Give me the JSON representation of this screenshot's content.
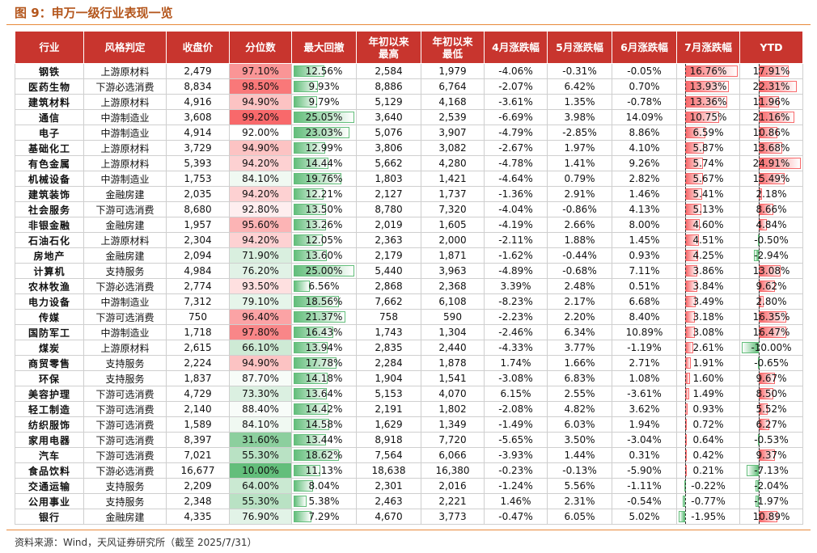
{
  "header": {
    "title": "图 9：申万一级行业表现一览"
  },
  "table": {
    "columns": [
      "行业",
      "风格判定",
      "收盘价",
      "分位数",
      "最大回撤",
      [
        "年初以来",
        "最高"
      ],
      [
        "年初以来",
        "最低"
      ],
      "4月涨跌幅",
      "5月涨跌幅",
      "6月涨跌幅",
      "7月涨跌幅",
      "YTD"
    ],
    "rows": [
      [
        "钢铁",
        "上游原材料",
        "2,479",
        "97.10%",
        "12.56%",
        "2,584",
        "1,979",
        "-4.06%",
        "-0.31%",
        "-0.05%",
        "16.76%",
        "17.91%"
      ],
      [
        "医药生物",
        "下游必选消费",
        "8,834",
        "98.50%",
        "9.93%",
        "8,886",
        "6,764",
        "-2.07%",
        "6.42%",
        "0.70%",
        "13.93%",
        "22.31%"
      ],
      [
        "建筑材料",
        "上游原材料",
        "4,916",
        "94.90%",
        "9.79%",
        "5,129",
        "4,168",
        "-3.61%",
        "1.35%",
        "-0.78%",
        "13.36%",
        "11.96%"
      ],
      [
        "通信",
        "中游制造业",
        "3,608",
        "99.20%",
        "25.05%",
        "3,640",
        "2,539",
        "-6.69%",
        "3.98%",
        "14.09%",
        "10.75%",
        "21.16%"
      ],
      [
        "电子",
        "中游制造业",
        "4,914",
        "92.00%",
        "23.03%",
        "5,076",
        "3,907",
        "-4.79%",
        "-2.85%",
        "8.86%",
        "6.59%",
        "10.86%"
      ],
      [
        "基础化工",
        "上游原材料",
        "3,729",
        "94.90%",
        "12.99%",
        "3,806",
        "3,082",
        "-2.67%",
        "1.97%",
        "4.10%",
        "5.87%",
        "13.68%"
      ],
      [
        "有色金属",
        "上游原材料",
        "5,393",
        "94.20%",
        "14.44%",
        "5,662",
        "4,280",
        "-4.78%",
        "1.41%",
        "9.26%",
        "5.74%",
        "24.91%"
      ],
      [
        "机械设备",
        "中游制造业",
        "1,753",
        "84.10%",
        "19.76%",
        "1,803",
        "1,421",
        "-4.64%",
        "0.79%",
        "2.82%",
        "5.67%",
        "15.49%"
      ],
      [
        "建筑装饰",
        "金融房建",
        "2,035",
        "94.20%",
        "12.21%",
        "2,127",
        "1,737",
        "-1.36%",
        "2.91%",
        "1.46%",
        "5.41%",
        "2.18%"
      ],
      [
        "社会服务",
        "下游可选消费",
        "8,680",
        "92.80%",
        "13.50%",
        "8,780",
        "7,320",
        "-4.04%",
        "-0.86%",
        "4.13%",
        "5.13%",
        "8.66%"
      ],
      [
        "非银金融",
        "金融房建",
        "1,957",
        "95.60%",
        "13.26%",
        "2,019",
        "1,605",
        "-4.19%",
        "2.66%",
        "8.00%",
        "4.60%",
        "4.84%"
      ],
      [
        "石油石化",
        "上游原材料",
        "2,304",
        "94.20%",
        "12.05%",
        "2,363",
        "2,000",
        "-2.11%",
        "1.88%",
        "1.45%",
        "4.51%",
        "-0.50%"
      ],
      [
        "房地产",
        "金融房建",
        "2,094",
        "71.90%",
        "13.60%",
        "2,179",
        "1,871",
        "-1.62%",
        "-0.44%",
        "0.93%",
        "4.25%",
        "-2.94%"
      ],
      [
        "计算机",
        "支持服务",
        "4,984",
        "76.20%",
        "25.00%",
        "5,440",
        "3,963",
        "-4.89%",
        "-0.68%",
        "7.11%",
        "3.86%",
        "13.08%"
      ],
      [
        "农林牧渔",
        "下游必选消费",
        "2,774",
        "93.50%",
        "6.56%",
        "2,868",
        "2,368",
        "3.39%",
        "2.48%",
        "0.51%",
        "3.84%",
        "9.62%"
      ],
      [
        "电力设备",
        "中游制造业",
        "7,312",
        "79.10%",
        "18.56%",
        "7,662",
        "6,108",
        "-8.23%",
        "2.17%",
        "6.68%",
        "3.49%",
        "2.80%"
      ],
      [
        "传媒",
        "下游可选消费",
        "750",
        "96.40%",
        "21.37%",
        "758",
        "590",
        "-2.23%",
        "2.20%",
        "8.40%",
        "3.18%",
        "16.35%"
      ],
      [
        "国防军工",
        "中游制造业",
        "1,718",
        "97.80%",
        "16.43%",
        "1,743",
        "1,304",
        "-2.46%",
        "6.34%",
        "10.89%",
        "3.08%",
        "16.47%"
      ],
      [
        "煤炭",
        "上游原材料",
        "2,615",
        "66.10%",
        "13.94%",
        "2,835",
        "2,440",
        "-4.33%",
        "3.77%",
        "-1.19%",
        "2.61%",
        "-10.00%"
      ],
      [
        "商贸零售",
        "支持服务",
        "2,224",
        "94.90%",
        "17.78%",
        "2,284",
        "1,878",
        "1.74%",
        "1.66%",
        "2.71%",
        "1.91%",
        "-0.65%"
      ],
      [
        "环保",
        "支持服务",
        "1,837",
        "87.70%",
        "14.18%",
        "1,904",
        "1,541",
        "-3.08%",
        "6.83%",
        "1.08%",
        "1.60%",
        "9.67%"
      ],
      [
        "美容护理",
        "下游可选消费",
        "4,729",
        "73.30%",
        "13.64%",
        "5,153",
        "4,070",
        "6.15%",
        "2.55%",
        "-3.61%",
        "1.49%",
        "8.50%"
      ],
      [
        "轻工制造",
        "下游可选消费",
        "2,140",
        "88.40%",
        "14.42%",
        "2,191",
        "1,802",
        "-2.08%",
        "4.82%",
        "3.62%",
        "0.93%",
        "5.52%"
      ],
      [
        "纺织服饰",
        "下游可选消费",
        "1,589",
        "84.10%",
        "14.58%",
        "1,629",
        "1,349",
        "-1.49%",
        "6.03%",
        "1.94%",
        "0.72%",
        "6.27%"
      ],
      [
        "家用电器",
        "下游可选消费",
        "8,397",
        "31.60%",
        "13.44%",
        "8,918",
        "7,720",
        "-5.65%",
        "3.50%",
        "-3.04%",
        "0.64%",
        "-0.53%"
      ],
      [
        "汽车",
        "下游可选消费",
        "7,021",
        "55.30%",
        "18.62%",
        "7,564",
        "6,066",
        "-3.93%",
        "1.44%",
        "0.31%",
        "0.42%",
        "9.37%"
      ],
      [
        "食品饮料",
        "下游必选消费",
        "16,677",
        "10.00%",
        "11.13%",
        "18,638",
        "16,380",
        "-0.23%",
        "-0.13%",
        "-5.90%",
        "0.21%",
        "-7.13%"
      ],
      [
        "交通运输",
        "支持服务",
        "2,209",
        "64.00%",
        "8.04%",
        "2,301",
        "2,016",
        "-1.24%",
        "5.56%",
        "-1.11%",
        "-0.22%",
        "-2.04%"
      ],
      [
        "公用事业",
        "支持服务",
        "2,348",
        "55.30%",
        "5.38%",
        "2,463",
        "2,221",
        "1.46%",
        "2.31%",
        "-0.54%",
        "-0.77%",
        "-1.97%"
      ],
      [
        "银行",
        "金融房建",
        "4,335",
        "76.90%",
        "7.29%",
        "4,670",
        "3,773",
        "-0.47%",
        "6.05%",
        "5.02%",
        "-1.95%",
        "10.89%"
      ]
    ]
  },
  "footer": {
    "source": "资料来源：Wind，天风证券研究所（截至 2025/7/31）"
  }
}
